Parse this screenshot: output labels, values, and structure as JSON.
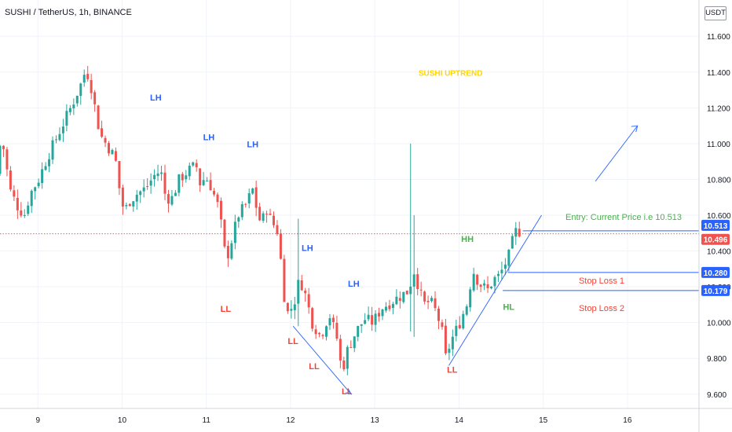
{
  "header": {
    "title": "SUSHI / TetherUS, 1h, BINANCE",
    "currency_button": "USDT"
  },
  "colors": {
    "up": "#26a69a",
    "down": "#ef5350",
    "blue": "#2962ff",
    "green": "#4caf50",
    "red": "#f44336",
    "yellow": "#ffd600"
  },
  "chart_data": {
    "type": "candlestick",
    "symbol": "SUSHI / TetherUS",
    "timeframe": "1h",
    "exchange": "BINANCE",
    "y_ticks": [
      "11.600",
      "11.400",
      "11.200",
      "11.000",
      "10.800",
      "10.600",
      "10.400",
      "10.200",
      "10.000",
      "9.800",
      "9.600"
    ],
    "y_range": [
      9.52,
      11.68
    ],
    "x_ticks": [
      "9",
      "10",
      "11",
      "12",
      "13",
      "14",
      "15",
      "16"
    ],
    "x_range_days": [
      8.55,
      16.85
    ],
    "price_path": [
      [
        8.55,
        10.83
      ],
      [
        8.6,
        11.02
      ],
      [
        8.65,
        10.95
      ],
      [
        8.7,
        10.75
      ],
      [
        8.8,
        10.65
      ],
      [
        8.88,
        10.6
      ],
      [
        8.95,
        10.72
      ],
      [
        9.05,
        10.8
      ],
      [
        9.15,
        10.92
      ],
      [
        9.25,
        11.02
      ],
      [
        9.35,
        11.12
      ],
      [
        9.45,
        11.22
      ],
      [
        9.55,
        11.33
      ],
      [
        9.6,
        11.4
      ],
      [
        9.65,
        11.38
      ],
      [
        9.72,
        11.2
      ],
      [
        9.78,
        11.05
      ],
      [
        9.85,
        11.0
      ],
      [
        9.92,
        10.95
      ],
      [
        9.98,
        10.88
      ],
      [
        10.02,
        10.7
      ],
      [
        10.07,
        10.62
      ],
      [
        10.13,
        10.68
      ],
      [
        10.22,
        10.72
      ],
      [
        10.32,
        10.75
      ],
      [
        10.42,
        10.82
      ],
      [
        10.5,
        10.85
      ],
      [
        10.55,
        10.72
      ],
      [
        10.62,
        10.68
      ],
      [
        10.72,
        10.8
      ],
      [
        10.83,
        10.85
      ],
      [
        10.92,
        10.88
      ],
      [
        10.98,
        10.75
      ],
      [
        11.02,
        10.82
      ],
      [
        11.08,
        10.78
      ],
      [
        11.16,
        10.68
      ],
      [
        11.2,
        10.62
      ],
      [
        11.24,
        10.45
      ],
      [
        11.28,
        10.35
      ],
      [
        11.32,
        10.42
      ],
      [
        11.42,
        10.6
      ],
      [
        11.5,
        10.65
      ],
      [
        11.55,
        10.7
      ],
      [
        11.6,
        10.75
      ],
      [
        11.65,
        10.6
      ],
      [
        11.7,
        10.55
      ],
      [
        11.75,
        10.65
      ],
      [
        11.8,
        10.58
      ],
      [
        11.9,
        10.5
      ],
      [
        11.95,
        10.2
      ],
      [
        12.0,
        10.05
      ],
      [
        12.08,
        10.1
      ],
      [
        12.15,
        10.25
      ],
      [
        12.22,
        10.15
      ],
      [
        12.3,
        10.0
      ],
      [
        12.4,
        9.92
      ],
      [
        12.5,
        10.05
      ],
      [
        12.6,
        9.9
      ],
      [
        12.65,
        9.72
      ],
      [
        12.72,
        9.85
      ],
      [
        12.82,
        9.95
      ],
      [
        12.92,
        10.02
      ],
      [
        13.02,
        10.0
      ],
      [
        13.12,
        10.08
      ],
      [
        13.25,
        10.12
      ],
      [
        13.35,
        10.15
      ],
      [
        13.45,
        10.18
      ],
      [
        13.5,
        10.3
      ],
      [
        13.55,
        10.22
      ],
      [
        13.62,
        10.1
      ],
      [
        13.7,
        10.12
      ],
      [
        13.78,
        10.05
      ],
      [
        13.84,
        9.95
      ],
      [
        13.88,
        9.8
      ],
      [
        13.95,
        9.9
      ],
      [
        14.05,
        10.0
      ],
      [
        14.15,
        10.12
      ],
      [
        14.2,
        10.3
      ],
      [
        14.28,
        10.22
      ],
      [
        14.38,
        10.18
      ],
      [
        14.45,
        10.24
      ],
      [
        14.52,
        10.26
      ],
      [
        14.58,
        10.32
      ],
      [
        14.64,
        10.38
      ],
      [
        14.7,
        10.5
      ],
      [
        14.72,
        10.51
      ]
    ],
    "spikes": [
      {
        "day": 12.08,
        "high": 10.58,
        "low": 9.98
      },
      {
        "day": 13.42,
        "high": 11.0,
        "low": 9.95
      },
      {
        "day": 13.46,
        "high": 10.6,
        "low": 9.92
      }
    ],
    "annotations": {
      "title_note": "SUSHI UPTREND",
      "structure_labels": [
        {
          "text": "LH",
          "kind": "high",
          "day": 10.4,
          "price": 11.24
        },
        {
          "text": "LH",
          "kind": "high",
          "day": 11.03,
          "price": 11.02
        },
        {
          "text": "LH",
          "kind": "high",
          "day": 11.55,
          "price": 10.98
        },
        {
          "text": "LH",
          "kind": "high",
          "day": 12.2,
          "price": 10.4
        },
        {
          "text": "LH",
          "kind": "high",
          "day": 12.75,
          "price": 10.2
        },
        {
          "text": "LL",
          "kind": "low",
          "day": 11.23,
          "price": 10.06
        },
        {
          "text": "LL",
          "kind": "low",
          "day": 12.03,
          "price": 9.88
        },
        {
          "text": "LL",
          "kind": "low",
          "day": 12.28,
          "price": 9.74
        },
        {
          "text": "LL",
          "kind": "low",
          "day": 12.67,
          "price": 9.6
        },
        {
          "text": "LL",
          "kind": "low",
          "day": 13.92,
          "price": 9.72
        },
        {
          "text": "HH",
          "kind": "higher",
          "day": 14.1,
          "price": 10.45
        },
        {
          "text": "HL",
          "kind": "higher",
          "day": 14.59,
          "price": 10.07
        }
      ],
      "entry_label": "Entry: Current Price i.e 10.513",
      "entry_price": 10.513,
      "stop_loss_1_label": "Stop Loss 1",
      "stop_loss_1_price": 10.28,
      "stop_loss_2_label": "Stop Loss 2",
      "stop_loss_2_price": 10.179,
      "last_price": 10.496
    },
    "price_badges": [
      "10.513",
      "10.496",
      "10.280",
      "10.179"
    ],
    "grid": true
  }
}
